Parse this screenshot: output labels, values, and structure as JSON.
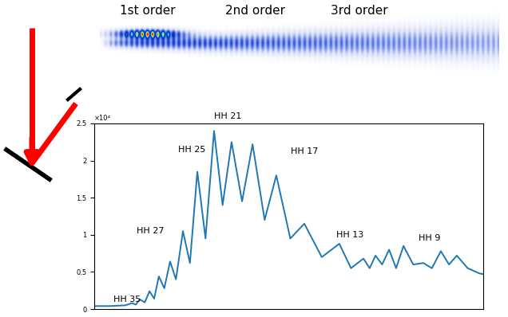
{
  "image": {
    "labels": [
      "1st order",
      "2nd order",
      "3rd order"
    ]
  },
  "chart_data": {
    "type": "line",
    "x": [
      0,
      4,
      8,
      9.7,
      10.7,
      11.7,
      13,
      14.2,
      15.4,
      16.6,
      18,
      19.5,
      21,
      22.8,
      24.6,
      26.5,
      28.6,
      30.8,
      33,
      35.3,
      38,
      40.7,
      43.8,
      46.8,
      50.4,
      54,
      58.5,
      63,
      66,
      69.2,
      70.8,
      72.3,
      74,
      75.8,
      77.6,
      79.5,
      82,
      84.6,
      86.8,
      89.1,
      91.2,
      93.2,
      96,
      99,
      100
    ],
    "values": [
      0.04,
      0.04,
      0.05,
      0.08,
      0.06,
      0.13,
      0.09,
      0.24,
      0.14,
      0.44,
      0.28,
      0.64,
      0.4,
      1.05,
      0.62,
      1.85,
      0.95,
      2.4,
      1.4,
      2.25,
      1.45,
      2.22,
      1.2,
      1.8,
      0.95,
      1.15,
      0.7,
      0.88,
      0.55,
      0.68,
      0.55,
      0.72,
      0.6,
      0.8,
      0.55,
      0.85,
      0.6,
      0.62,
      0.55,
      0.78,
      0.6,
      0.72,
      0.55,
      0.48,
      0.47
    ],
    "color": "#1f77b4",
    "xlim": [
      0,
      100
    ],
    "ylim": [
      0,
      2.5
    ],
    "yticks": [
      0,
      0.5,
      1,
      1.5,
      2,
      2.5
    ],
    "tick_labels": "y",
    "annotations": [
      {
        "text": "×10⁴"
      },
      {
        "text": "HH 35"
      },
      {
        "text": "HH 27"
      },
      {
        "text": "HH 25"
      },
      {
        "text": "HH 21"
      },
      {
        "text": "HH 17"
      },
      {
        "text": "HH 13"
      },
      {
        "text": "HH 9"
      }
    ]
  }
}
